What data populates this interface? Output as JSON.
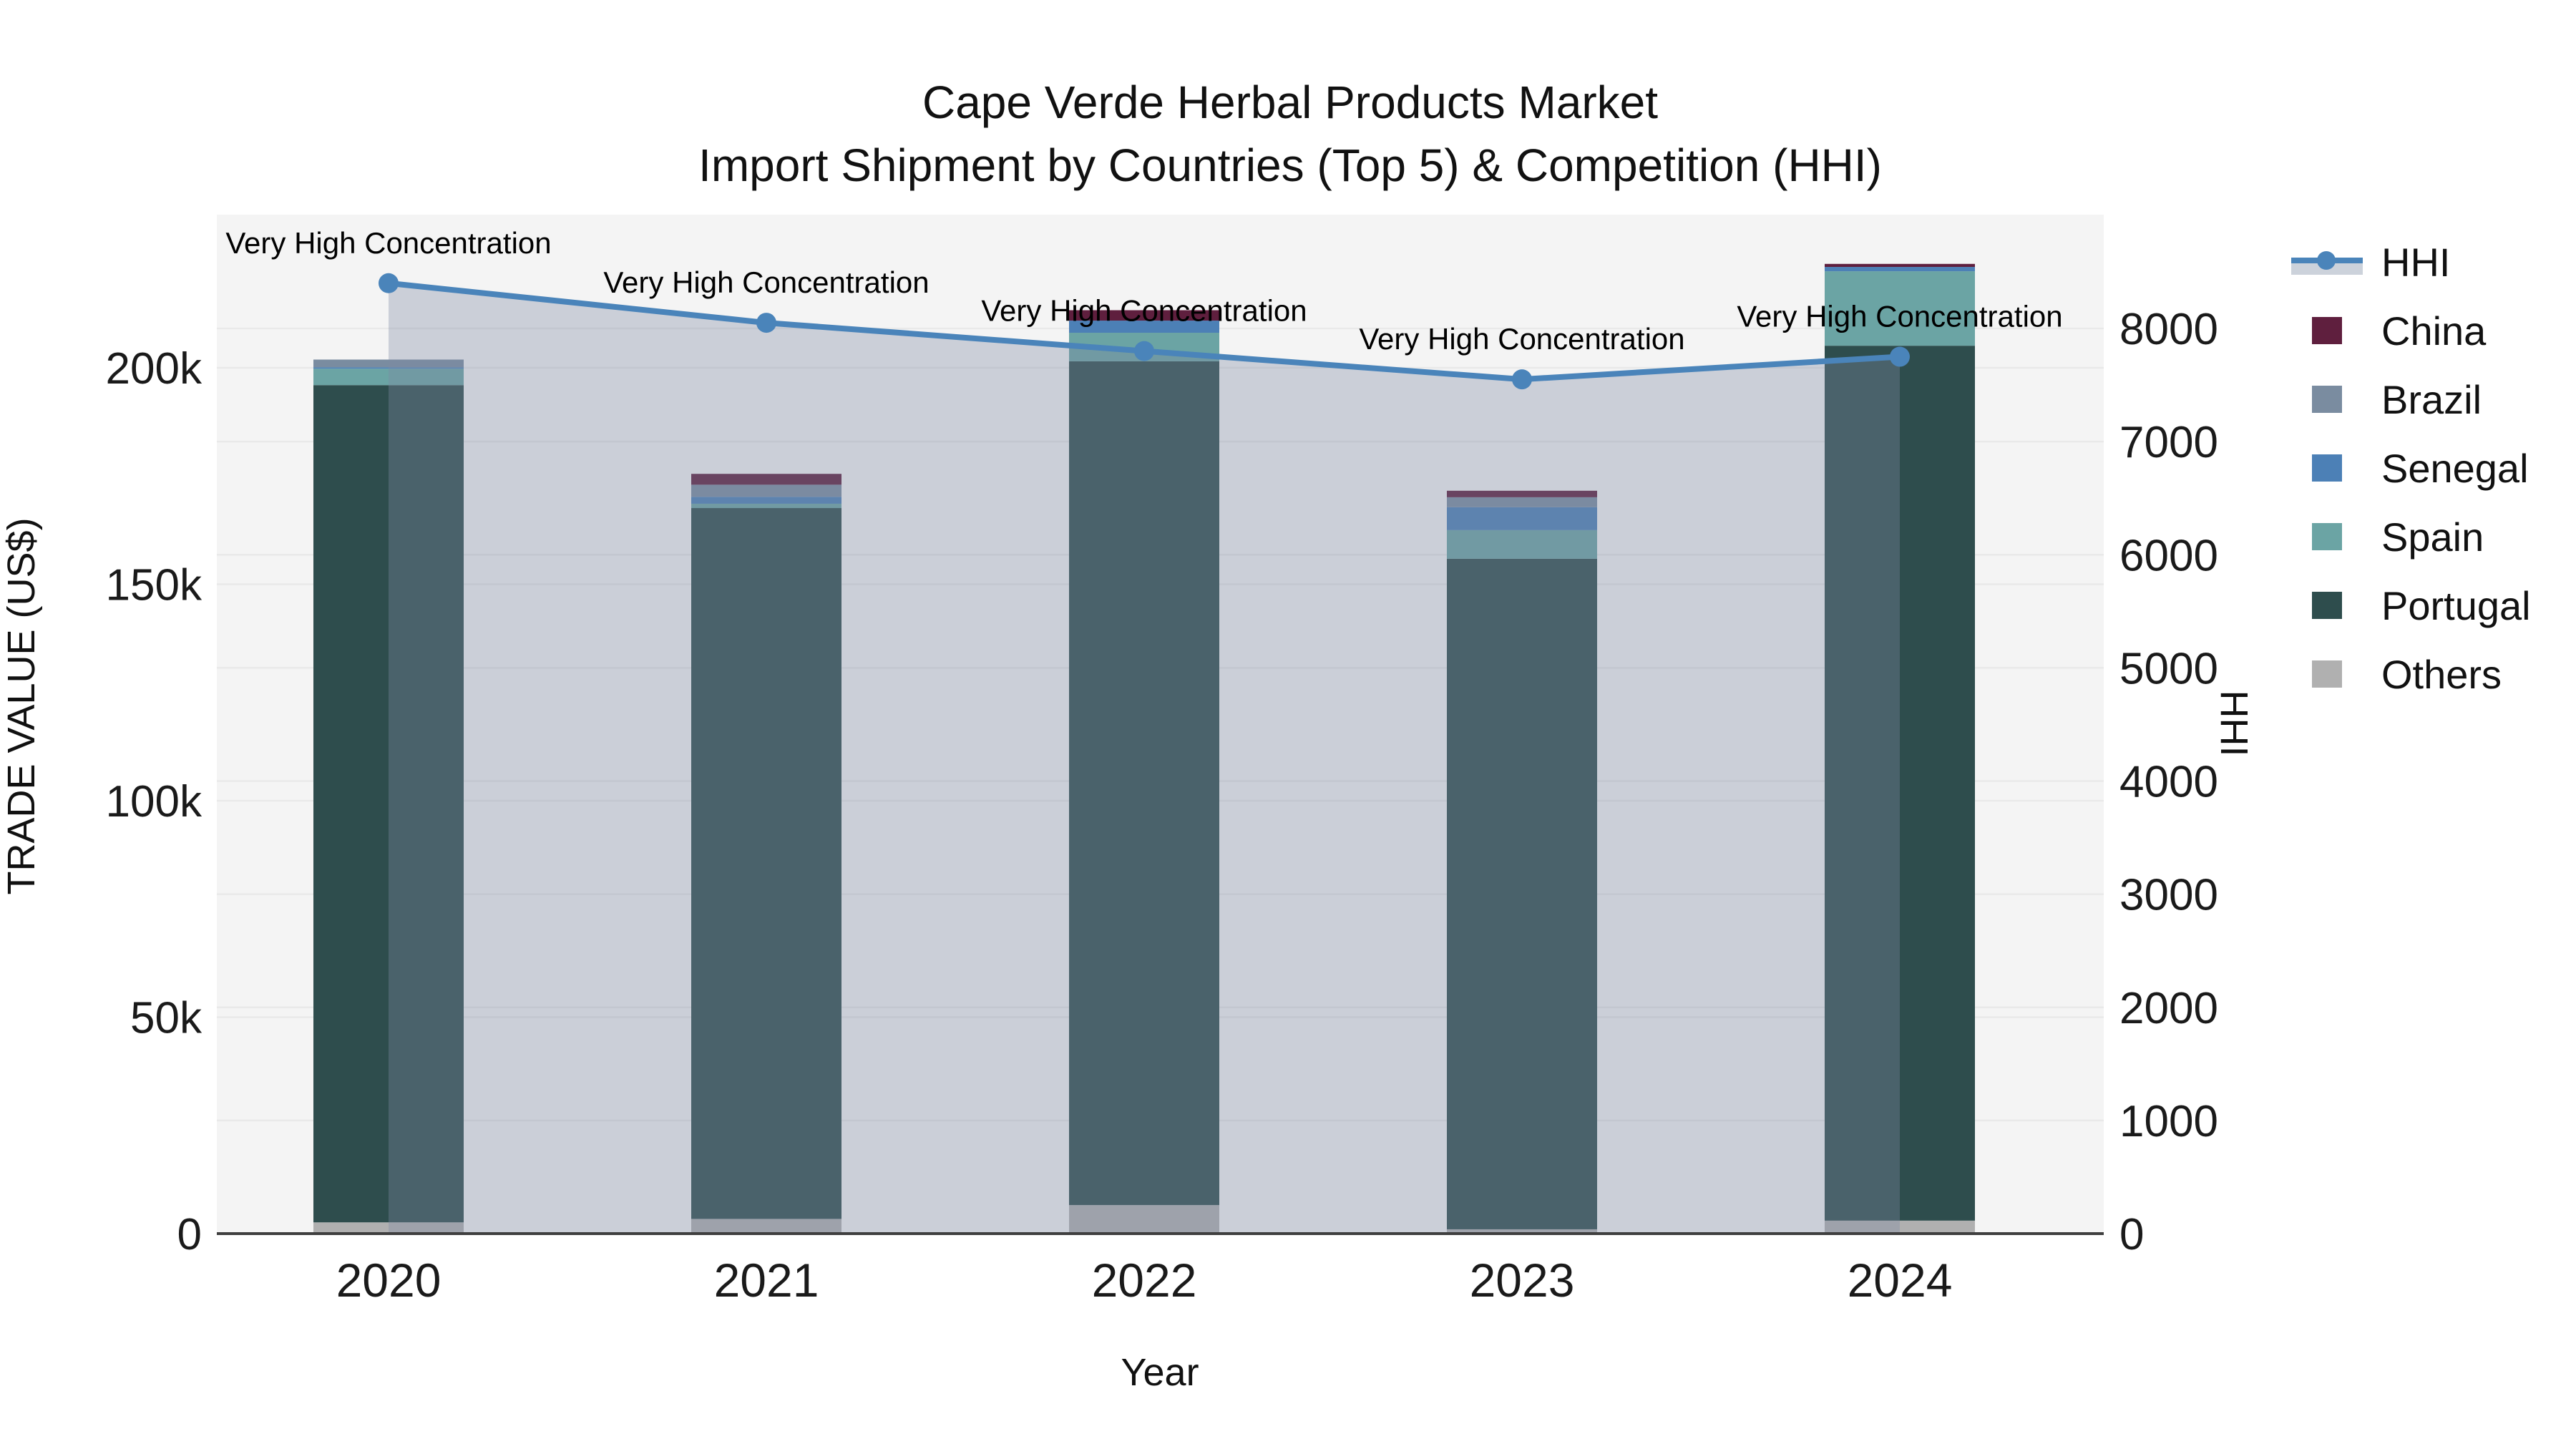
{
  "title": {
    "line1": "Cape Verde Herbal Products Market",
    "line2": "Import Shipment by Countries (Top 5) & Competition (HHI)"
  },
  "chart_data": {
    "type": "bar+line",
    "categories": [
      "2020",
      "2021",
      "2022",
      "2023",
      "2024"
    ],
    "xlabel": "Year",
    "ylabel_left": "TRADE VALUE (US$)",
    "ylabel_right": "HHI",
    "ylim_left": [
      0,
      235000
    ],
    "ylim_right": [
      0,
      9000
    ],
    "grid": true,
    "legend_position": "right",
    "yticks_left": {
      "values": [
        0,
        50000,
        100000,
        150000,
        200000
      ],
      "labels": [
        "0",
        "50k",
        "100k",
        "150k",
        "200k"
      ]
    },
    "yticks_right": {
      "values": [
        0,
        1000,
        2000,
        3000,
        4000,
        5000,
        6000,
        7000,
        8000
      ],
      "labels": [
        "0",
        "1000",
        "2000",
        "3000",
        "4000",
        "5000",
        "6000",
        "7000",
        "8000"
      ]
    },
    "bar_series_stack_bottom_to_top": [
      {
        "name": "Others",
        "color": "#B0B0B0",
        "values": [
          2600,
          3400,
          6600,
          1000,
          3000
        ]
      },
      {
        "name": "Portugal",
        "color": "#2E4D4D",
        "values": [
          193400,
          164200,
          194900,
          154900,
          202100
        ]
      },
      {
        "name": "Spain",
        "color": "#6BA4A4",
        "values": [
          3800,
          1000,
          6600,
          6600,
          17200
        ]
      },
      {
        "name": "Senegal",
        "color": "#4C80B6",
        "values": [
          300,
          1600,
          2800,
          5300,
          1000
        ]
      },
      {
        "name": "Brazil",
        "color": "#7A8CA0",
        "values": [
          1800,
          2800,
          0,
          2300,
          0
        ]
      },
      {
        "name": "China",
        "color": "#5F1F3E",
        "values": [
          0,
          2500,
          2400,
          1500,
          700
        ]
      }
    ],
    "bar_totals": [
      201900,
      175500,
      213300,
      171600,
      224000
    ],
    "line_series": {
      "name": "HHI",
      "color": "#4A84BA",
      "area_fill": "rgba(126,138,162,0.35)",
      "values": [
        8400,
        8050,
        7800,
        7550,
        7750
      ]
    },
    "annotations": [
      {
        "year": "2020",
        "text": "Very High Concentration"
      },
      {
        "year": "2021",
        "text": "Very High Concentration"
      },
      {
        "year": "2022",
        "text": "Very High Concentration"
      },
      {
        "year": "2023",
        "text": "Very High Concentration"
      },
      {
        "year": "2024",
        "text": "Very High Concentration"
      }
    ],
    "legend_order_top_to_bottom": [
      "HHI",
      "China",
      "Brazil",
      "Senegal",
      "Spain",
      "Portugal",
      "Others"
    ]
  },
  "colors": {
    "plot_background": "#F4F4F4",
    "page_background": "#FFFFFF",
    "gridline": "#E9E9E9",
    "axis_line": "#3F3F3F",
    "text": "#111111",
    "hhi_line": "#4A84BA",
    "hhi_area": "rgba(126,138,162,0.35)",
    "china": "#5F1F3E",
    "brazil": "#7A8CA0",
    "senegal": "#4C80B6",
    "spain": "#6BA4A4",
    "portugal": "#2E4D4D",
    "others": "#B0B0B0"
  }
}
